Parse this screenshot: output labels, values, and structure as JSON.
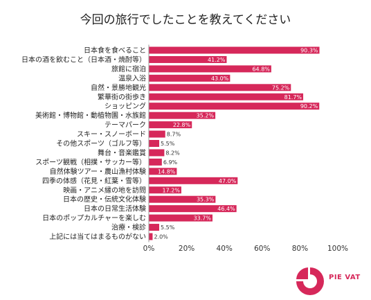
{
  "colors": {
    "bar": "#d6285a",
    "axis": "#999999",
    "text": "#222222"
  },
  "brand": {
    "name": "PIE VAT",
    "logo_icon": "pie-chart-icon"
  },
  "chart_data": {
    "type": "bar",
    "orientation": "horizontal",
    "title": "今回の旅行でしたことを教えてください",
    "xlim": [
      0,
      100
    ],
    "x_ticks": [
      "0%",
      "20%",
      "40%",
      "60%",
      "80%",
      "100%"
    ],
    "grid": false,
    "categories": [
      "日本食を食べること",
      "日本の酒を飲むこと（日本酒・焼酎等）",
      "旅館に宿泊",
      "温泉入浴",
      "自然・景勝地観光",
      "繁華街の街歩き",
      "ショッピング",
      "美術館・博物館・動植物園・水族館",
      "テーマパーク",
      "スキー・スノーボード",
      "その他スポーツ（ゴルフ等）",
      "舞台・音楽鑑賞",
      "スポーツ観戦（相撲・サッカー等）",
      "自然体験ツアー・農山漁村体験",
      "四季の体感（花見・紅葉・雪等）",
      "映画・アニメ縁の地を訪問",
      "日本の歴史・伝統文化体験",
      "日本の日常生活体験",
      "日本のポップカルチャーを楽しむ",
      "治療・検診",
      "上記には当てはまるものがない"
    ],
    "values": [
      90.3,
      41.2,
      64.8,
      43.0,
      75.2,
      81.7,
      90.2,
      35.2,
      22.8,
      8.7,
      5.5,
      8.2,
      6.9,
      14.8,
      47.0,
      17.2,
      35.3,
      46.4,
      33.7,
      5.5,
      2.0
    ],
    "value_labels": [
      "90.3%",
      "41.2%",
      "64.8%",
      "43.0%",
      "75.2%",
      "81.7%",
      "90.2%",
      "35.2%",
      "22.8%",
      "8.7%",
      "5.5%",
      "8.2%",
      "6.9%",
      "14.8%",
      "47.0%",
      "17.2%",
      "35.3%",
      "46.4%",
      "33.7%",
      "5.5%",
      "2.0%"
    ]
  }
}
